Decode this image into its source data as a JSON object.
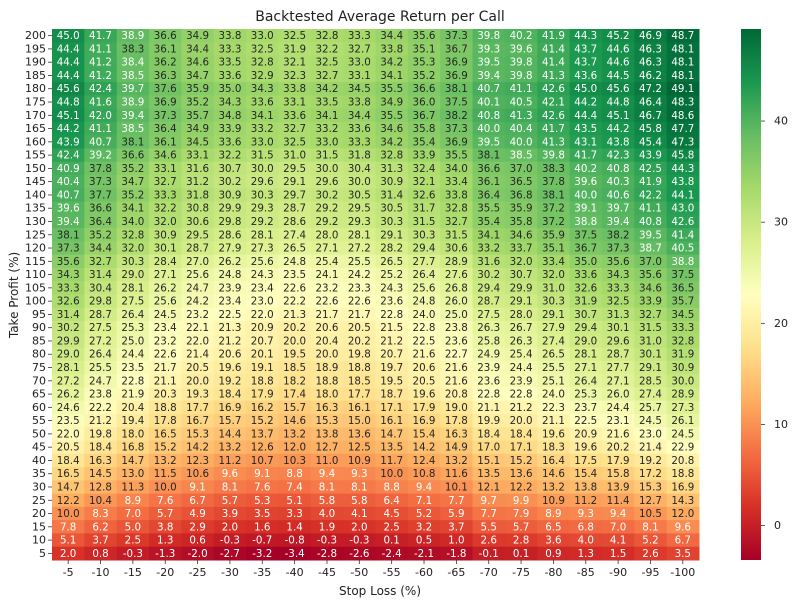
{
  "chart_data": {
    "type": "heatmap",
    "title": "Backtested Average Return per Call",
    "xlabel": "Stop Loss (%)",
    "ylabel": "Take Profit (%)",
    "x": [
      "-5",
      "-10",
      "-15",
      "-20",
      "-25",
      "-30",
      "-35",
      "-40",
      "-45",
      "-50",
      "-55",
      "-60",
      "-65",
      "-70",
      "-75",
      "-80",
      "-85",
      "-90",
      "-95",
      "-100"
    ],
    "y": [
      "200",
      "195",
      "190",
      "185",
      "180",
      "175",
      "170",
      "165",
      "160",
      "155",
      "150",
      "145",
      "140",
      "135",
      "130",
      "125",
      "120",
      "115",
      "110",
      "105",
      "100",
      "95",
      "90",
      "85",
      "80",
      "75",
      "70",
      "65",
      "60",
      "55",
      "50",
      "45",
      "40",
      "35",
      "30",
      "25",
      "20",
      "15",
      "10",
      "5"
    ],
    "values": [
      [
        45.0,
        41.7,
        38.9,
        36.6,
        34.9,
        33.8,
        33.0,
        32.5,
        32.8,
        33.3,
        34.4,
        35.6,
        37.3,
        39.8,
        40.2,
        41.9,
        44.3,
        45.2,
        46.9,
        48.7
      ],
      [
        44.4,
        41.1,
        38.3,
        36.1,
        34.4,
        33.3,
        32.5,
        31.9,
        32.2,
        32.7,
        33.8,
        35.1,
        36.7,
        39.3,
        39.6,
        41.4,
        43.7,
        44.6,
        46.3,
        48.1
      ],
      [
        44.4,
        41.2,
        38.4,
        36.2,
        34.6,
        33.5,
        32.8,
        32.1,
        32.5,
        33.0,
        34.2,
        35.3,
        36.9,
        39.5,
        39.8,
        41.4,
        43.7,
        44.6,
        46.3,
        48.1
      ],
      [
        44.4,
        41.2,
        38.5,
        36.3,
        34.7,
        33.6,
        32.9,
        32.3,
        32.7,
        33.1,
        34.1,
        35.2,
        36.9,
        39.4,
        39.8,
        41.3,
        43.6,
        44.5,
        46.2,
        48.1
      ],
      [
        45.6,
        42.4,
        39.7,
        37.6,
        35.9,
        35.0,
        34.3,
        33.8,
        34.2,
        34.5,
        35.5,
        36.6,
        38.1,
        40.7,
        41.1,
        42.6,
        45.0,
        45.6,
        47.2,
        49.1
      ],
      [
        44.8,
        41.6,
        38.9,
        36.9,
        35.2,
        34.3,
        33.6,
        33.1,
        33.5,
        33.8,
        34.9,
        36.0,
        37.5,
        40.1,
        40.5,
        42.1,
        44.2,
        44.8,
        46.4,
        48.3
      ],
      [
        45.1,
        42.0,
        39.4,
        37.3,
        35.7,
        34.8,
        34.1,
        33.6,
        34.1,
        34.4,
        35.5,
        36.7,
        38.2,
        40.8,
        41.3,
        42.6,
        44.4,
        45.1,
        46.7,
        48.6
      ],
      [
        44.2,
        41.1,
        38.5,
        36.4,
        34.9,
        33.9,
        33.2,
        32.7,
        33.2,
        33.6,
        34.6,
        35.8,
        37.3,
        40.0,
        40.4,
        41.7,
        43.5,
        44.2,
        45.8,
        47.7
      ],
      [
        43.9,
        40.7,
        38.1,
        36.1,
        34.5,
        33.6,
        33.0,
        32.5,
        33.0,
        33.3,
        34.2,
        35.4,
        36.9,
        39.5,
        40.0,
        41.3,
        43.1,
        43.8,
        45.4,
        47.3
      ],
      [
        42.4,
        39.2,
        36.6,
        34.6,
        33.1,
        32.2,
        31.5,
        31.0,
        31.5,
        31.8,
        32.8,
        33.9,
        35.5,
        38.1,
        38.5,
        39.8,
        41.7,
        42.3,
        43.9,
        45.8
      ],
      [
        40.9,
        37.8,
        35.2,
        33.1,
        31.6,
        30.7,
        30.0,
        29.5,
        30.0,
        30.4,
        31.3,
        32.4,
        34.0,
        36.6,
        37.0,
        38.3,
        40.2,
        40.8,
        42.5,
        44.3
      ],
      [
        40.4,
        37.3,
        34.7,
        32.7,
        31.2,
        30.2,
        29.6,
        29.1,
        29.6,
        30.0,
        30.9,
        32.1,
        33.4,
        36.1,
        36.5,
        37.8,
        39.6,
        40.3,
        41.9,
        43.8
      ],
      [
        40.7,
        37.7,
        35.2,
        33.3,
        31.8,
        30.9,
        30.3,
        29.7,
        30.2,
        30.5,
        31.4,
        32.6,
        33.8,
        36.4,
        36.8,
        38.1,
        40.0,
        40.6,
        42.2,
        44.1
      ],
      [
        39.6,
        36.6,
        34.1,
        32.2,
        30.8,
        29.9,
        29.3,
        28.7,
        29.2,
        29.5,
        30.5,
        31.7,
        32.8,
        35.5,
        35.9,
        37.2,
        39.1,
        39.7,
        41.1,
        43.0
      ],
      [
        39.4,
        36.4,
        34.0,
        32.0,
        30.6,
        29.8,
        29.2,
        28.6,
        29.2,
        29.3,
        30.3,
        31.5,
        32.7,
        35.4,
        35.8,
        37.2,
        38.8,
        39.4,
        40.8,
        42.6
      ],
      [
        38.1,
        35.2,
        32.8,
        30.9,
        29.5,
        28.6,
        28.1,
        27.4,
        28.0,
        28.1,
        29.1,
        30.3,
        31.5,
        34.1,
        34.6,
        35.9,
        37.5,
        38.2,
        39.5,
        41.4
      ],
      [
        37.3,
        34.4,
        32.0,
        30.1,
        28.7,
        27.9,
        27.3,
        26.5,
        27.1,
        27.2,
        28.2,
        29.4,
        30.6,
        33.2,
        33.7,
        35.1,
        36.7,
        37.3,
        38.7,
        40.5
      ],
      [
        35.6,
        32.7,
        30.3,
        28.4,
        27.0,
        26.2,
        25.6,
        24.8,
        25.4,
        25.5,
        26.5,
        27.7,
        28.9,
        31.6,
        32.0,
        33.4,
        35.0,
        35.6,
        37.0,
        38.8
      ],
      [
        34.3,
        31.4,
        29.0,
        27.1,
        25.6,
        24.8,
        24.3,
        23.5,
        24.1,
        24.2,
        25.2,
        26.4,
        27.6,
        30.2,
        30.7,
        32.0,
        33.6,
        34.3,
        35.6,
        37.5
      ],
      [
        33.3,
        30.4,
        28.1,
        26.2,
        24.7,
        23.9,
        23.4,
        22.6,
        23.2,
        23.3,
        24.3,
        25.6,
        26.8,
        29.4,
        29.9,
        31.0,
        32.6,
        33.3,
        34.6,
        36.5
      ],
      [
        32.6,
        29.8,
        27.5,
        25.6,
        24.2,
        23.4,
        23.0,
        22.2,
        22.6,
        22.6,
        23.6,
        24.8,
        26.0,
        28.7,
        29.1,
        30.3,
        31.9,
        32.5,
        33.9,
        35.7
      ],
      [
        31.4,
        28.7,
        26.4,
        24.5,
        23.2,
        22.5,
        22.0,
        21.3,
        21.7,
        21.7,
        22.8,
        24.0,
        25.0,
        27.5,
        28.0,
        29.1,
        30.7,
        31.3,
        32.7,
        34.5
      ],
      [
        30.2,
        27.5,
        25.3,
        23.4,
        22.1,
        21.3,
        20.9,
        20.2,
        20.6,
        20.5,
        21.5,
        22.8,
        23.8,
        26.3,
        26.7,
        27.9,
        29.4,
        30.1,
        31.5,
        33.3
      ],
      [
        29.9,
        27.2,
        25.0,
        23.2,
        22.0,
        21.2,
        20.7,
        20.0,
        20.4,
        20.2,
        21.2,
        22.5,
        23.6,
        25.8,
        26.3,
        27.4,
        29.0,
        29.6,
        31.0,
        32.8
      ],
      [
        29.0,
        26.4,
        24.4,
        22.6,
        21.4,
        20.6,
        20.1,
        19.5,
        20.0,
        19.8,
        20.7,
        21.6,
        22.7,
        24.9,
        25.4,
        26.5,
        28.1,
        28.7,
        30.1,
        31.9
      ],
      [
        28.1,
        25.5,
        23.5,
        21.7,
        20.5,
        19.6,
        19.1,
        18.5,
        18.9,
        18.8,
        19.7,
        20.6,
        21.6,
        23.9,
        24.4,
        25.5,
        27.1,
        27.7,
        29.1,
        30.9
      ],
      [
        27.2,
        24.7,
        22.8,
        21.1,
        20.0,
        19.2,
        18.8,
        18.2,
        18.8,
        18.5,
        19.5,
        20.5,
        21.6,
        23.6,
        23.9,
        25.1,
        26.4,
        27.1,
        28.5,
        30.0
      ],
      [
        26.2,
        23.8,
        21.9,
        20.3,
        19.3,
        18.4,
        17.9,
        17.4,
        18.0,
        17.7,
        18.7,
        19.6,
        20.8,
        22.8,
        22.8,
        24.0,
        25.3,
        26.0,
        27.4,
        28.9
      ],
      [
        24.6,
        22.2,
        20.4,
        18.8,
        17.7,
        16.9,
        16.2,
        15.7,
        16.3,
        16.1,
        17.1,
        17.9,
        19.0,
        21.1,
        21.2,
        22.3,
        23.7,
        24.4,
        25.7,
        27.3
      ],
      [
        23.5,
        21.2,
        19.4,
        17.8,
        16.7,
        15.7,
        15.2,
        14.6,
        15.3,
        15.0,
        16.1,
        16.9,
        17.8,
        19.9,
        20.0,
        21.1,
        22.5,
        23.1,
        24.5,
        26.1
      ],
      [
        22.0,
        19.8,
        18.0,
        16.5,
        15.3,
        14.4,
        13.7,
        13.2,
        13.8,
        13.6,
        14.7,
        15.4,
        16.3,
        18.4,
        18.4,
        19.6,
        20.9,
        21.6,
        23.0,
        24.5
      ],
      [
        20.5,
        18.4,
        16.8,
        15.2,
        14.2,
        13.2,
        12.6,
        12.0,
        12.7,
        12.5,
        13.5,
        14.2,
        14.9,
        17.0,
        17.1,
        18.3,
        19.6,
        20.2,
        21.4,
        22.9
      ],
      [
        18.4,
        16.3,
        14.7,
        13.2,
        12.3,
        11.2,
        10.7,
        10.3,
        11.0,
        10.9,
        11.7,
        12.4,
        13.2,
        15.1,
        15.2,
        16.4,
        17.5,
        17.9,
        19.2,
        20.8
      ],
      [
        16.5,
        14.5,
        13.0,
        11.5,
        10.6,
        9.6,
        9.1,
        8.8,
        9.4,
        9.3,
        10.0,
        10.8,
        11.6,
        13.5,
        13.6,
        14.6,
        15.4,
        15.8,
        17.2,
        18.8
      ],
      [
        14.7,
        12.8,
        11.3,
        10.0,
        9.1,
        8.1,
        7.6,
        7.4,
        8.1,
        8.1,
        8.8,
        9.4,
        10.1,
        12.1,
        12.2,
        13.2,
        13.8,
        13.9,
        15.3,
        16.9
      ],
      [
        12.2,
        10.4,
        8.9,
        7.6,
        6.7,
        5.7,
        5.3,
        5.1,
        5.8,
        5.8,
        6.4,
        7.1,
        7.7,
        9.7,
        9.9,
        10.9,
        11.2,
        11.4,
        12.7,
        14.3
      ],
      [
        10.0,
        8.3,
        7.0,
        5.7,
        4.9,
        3.9,
        3.5,
        3.3,
        4.0,
        4.1,
        4.5,
        5.2,
        5.9,
        7.7,
        7.9,
        8.9,
        9.3,
        9.4,
        10.5,
        12.0
      ],
      [
        7.8,
        6.2,
        5.0,
        3.8,
        2.9,
        2.0,
        1.6,
        1.4,
        1.9,
        2.0,
        2.5,
        3.2,
        3.7,
        5.5,
        5.7,
        6.5,
        6.8,
        7.0,
        8.1,
        9.6
      ],
      [
        5.1,
        3.7,
        2.5,
        1.3,
        0.6,
        -0.3,
        -0.7,
        -0.8,
        -0.3,
        -0.3,
        0.1,
        0.5,
        1.0,
        2.6,
        2.8,
        3.6,
        4.0,
        4.1,
        5.2,
        6.7
      ],
      [
        2.0,
        0.8,
        -0.3,
        -1.3,
        -2.0,
        -2.7,
        -3.2,
        -3.4,
        -2.8,
        -2.6,
        -2.4,
        -2.1,
        -1.8,
        -0.1,
        0.1,
        0.9,
        1.3,
        1.5,
        2.6,
        3.5
      ]
    ],
    "vmin": -3.4,
    "vmax": 49.1,
    "colormap": "RdYlGn",
    "colorbar_ticks": [
      0,
      10,
      20,
      30,
      40
    ]
  }
}
